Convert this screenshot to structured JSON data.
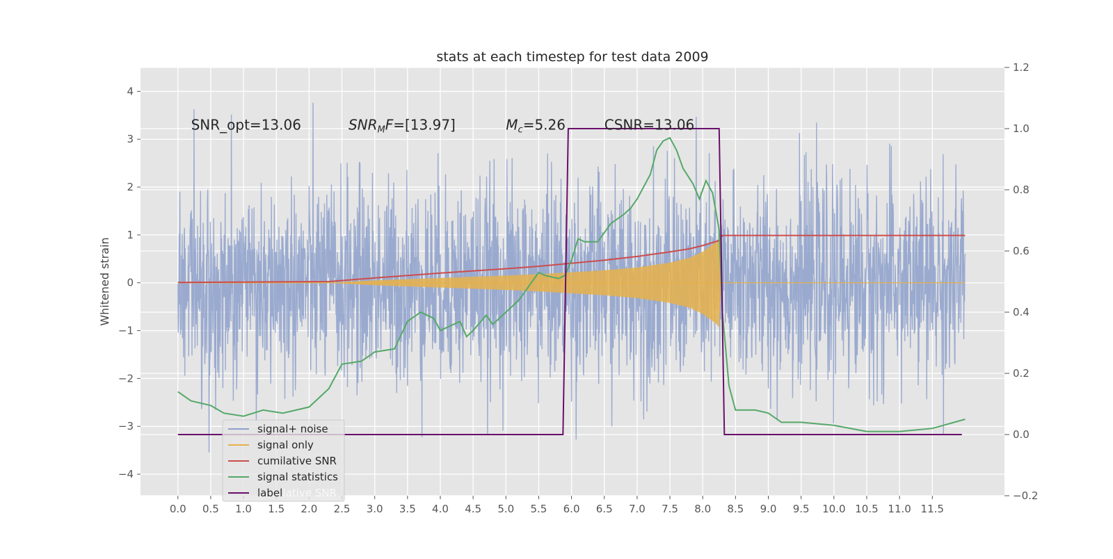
{
  "chart_data": {
    "type": "line",
    "title": "stats at each timestep for test data 2009",
    "ylabel": "Whitened strain",
    "xlabel": "",
    "y2label": "",
    "xlim": [
      -0.57,
      12.6
    ],
    "ylim": [
      -4.45,
      4.5
    ],
    "y2lim": [
      -0.2,
      1.2
    ],
    "xticks": [
      0.0,
      0.5,
      1.0,
      1.5,
      2.0,
      2.5,
      3.0,
      3.5,
      4.0,
      4.5,
      5.0,
      5.5,
      6.0,
      6.5,
      7.0,
      7.5,
      8.0,
      8.5,
      9.0,
      9.5,
      10.0,
      10.5,
      11.0,
      11.5
    ],
    "xtick_labels": [
      "0.0",
      "0.5",
      "1.0",
      "1.5",
      "2.0",
      "2.5",
      "3.0",
      "3.5",
      "4.0",
      "4.5",
      "5.0",
      "5.5",
      "6.0",
      "6.5",
      "7.0",
      "7.5",
      "8.0",
      "8.5",
      "9.0",
      "9.5",
      "10.0",
      "10.5",
      "11.0",
      "11.5"
    ],
    "yticks": [
      -4,
      -3,
      -2,
      -1,
      0,
      1,
      2,
      3,
      4
    ],
    "ytick_labels": [
      "−4",
      "−3",
      "−2",
      "−1",
      "0",
      "1",
      "2",
      "3",
      "4"
    ],
    "y2ticks": [
      -0.2,
      0.0,
      0.2,
      0.4,
      0.6,
      0.8,
      1.0,
      1.2
    ],
    "y2tick_labels": [
      "−0.2",
      "0.0",
      "0.2",
      "0.4",
      "0.6",
      "0.8",
      "1.0",
      "1.2"
    ],
    "grid": true,
    "legend_position": "lower-left",
    "noise": {
      "t_start": 0.0,
      "t_end": 12.0,
      "sigma": 1.05
    },
    "series": [
      {
        "name": "signal+ noise",
        "axis": "left",
        "color": "#8da0cb",
        "kind": "noise-trace"
      },
      {
        "name": "signal only",
        "axis": "left",
        "color": "#e6b14a",
        "kind": "chirp-envelope",
        "envelope": {
          "t": [
            2.3,
            3.0,
            4.0,
            5.0,
            5.5,
            6.0,
            6.5,
            7.0,
            7.5,
            7.8,
            8.0,
            8.1,
            8.2,
            8.25,
            8.28
          ],
          "amp": [
            0.0,
            0.05,
            0.1,
            0.15,
            0.18,
            0.22,
            0.26,
            0.32,
            0.42,
            0.52,
            0.65,
            0.75,
            0.85,
            0.93,
            0.0
          ]
        }
      },
      {
        "name": "cumilative SNR",
        "axis": "right",
        "color": "#cc4c4c",
        "x": [
          0.0,
          2.3,
          3.0,
          4.0,
          5.0,
          5.5,
          6.0,
          6.5,
          7.0,
          7.5,
          7.8,
          8.0,
          8.25,
          8.3,
          12.0
        ],
        "y": [
          0.497,
          0.5,
          0.512,
          0.528,
          0.542,
          0.55,
          0.56,
          0.57,
          0.582,
          0.597,
          0.607,
          0.618,
          0.634,
          0.651,
          0.651
        ]
      },
      {
        "name": "signal statistics",
        "axis": "right",
        "color": "#55a868",
        "x": [
          0.0,
          0.2,
          0.5,
          0.7,
          1.0,
          1.3,
          1.6,
          2.0,
          2.3,
          2.5,
          2.8,
          3.0,
          3.3,
          3.5,
          3.7,
          3.9,
          4.0,
          4.1,
          4.3,
          4.4,
          4.5,
          4.7,
          4.8,
          4.9,
          5.0,
          5.2,
          5.3,
          5.5,
          5.6,
          5.8,
          5.9,
          6.0,
          6.1,
          6.2,
          6.4,
          6.6,
          6.8,
          6.9,
          7.0,
          7.2,
          7.3,
          7.4,
          7.5,
          7.6,
          7.7,
          7.85,
          7.95,
          8.05,
          8.15,
          8.25,
          8.3,
          8.4,
          8.5,
          8.8,
          9.0,
          9.2,
          9.5,
          10.0,
          10.5,
          11.0,
          11.5,
          12.0
        ],
        "y": [
          0.14,
          0.11,
          0.095,
          0.07,
          0.06,
          0.08,
          0.07,
          0.09,
          0.15,
          0.23,
          0.24,
          0.27,
          0.28,
          0.37,
          0.4,
          0.38,
          0.34,
          0.35,
          0.37,
          0.32,
          0.34,
          0.39,
          0.36,
          0.38,
          0.4,
          0.44,
          0.47,
          0.53,
          0.52,
          0.51,
          0.52,
          0.57,
          0.64,
          0.63,
          0.63,
          0.69,
          0.72,
          0.74,
          0.77,
          0.85,
          0.93,
          0.96,
          0.97,
          0.93,
          0.87,
          0.82,
          0.77,
          0.83,
          0.79,
          0.67,
          0.4,
          0.16,
          0.08,
          0.08,
          0.07,
          0.04,
          0.04,
          0.03,
          0.01,
          0.01,
          0.02,
          0.05
        ]
      },
      {
        "name": "label",
        "axis": "right",
        "color": "#6a0f6b",
        "x": [
          0.0,
          5.87,
          5.95,
          8.25,
          8.33,
          11.95
        ],
        "y": [
          0.0,
          0.0,
          1.0,
          1.0,
          0.0,
          0.0
        ]
      }
    ],
    "annotations": [
      {
        "x": 0.2,
        "y": 3.2,
        "text": "SNR_opt=13.06"
      },
      {
        "x": 2.6,
        "y": 3.2,
        "text": "SNR_MF=[13.97]"
      },
      {
        "x": 5.0,
        "y": 3.2,
        "text": "M_c=5.26"
      },
      {
        "x": 6.5,
        "y": 3.2,
        "text": "CSNR=13.06"
      }
    ],
    "ghost_legend_text": "cumilative SNR"
  },
  "colors": {
    "plot_bg": "#e5e5e5",
    "grid": "#ffffff",
    "text": "#262626",
    "tick_text": "#555555"
  }
}
